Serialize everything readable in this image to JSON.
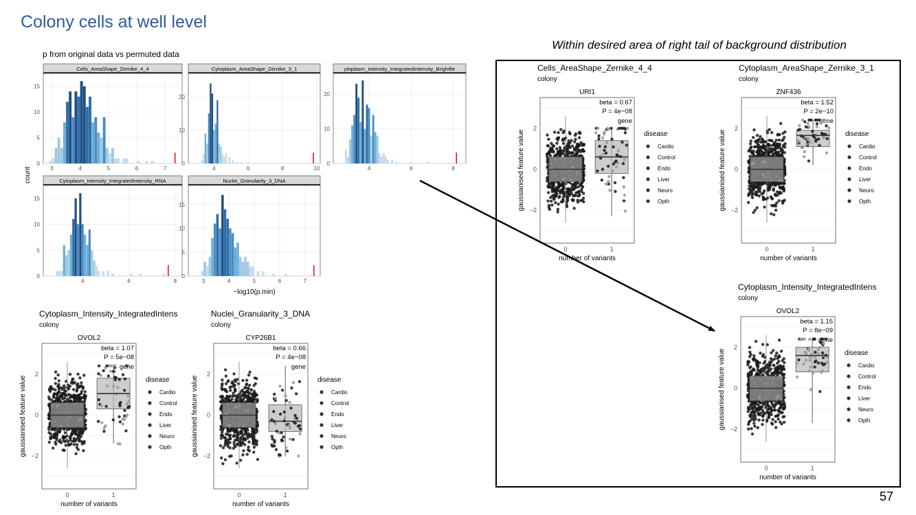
{
  "slide": {
    "title": "Colony cells at well level",
    "section_label": "p from original data vs permuted data",
    "tail_title": "Within desired area of right tail of background distribution",
    "page_number": "57"
  },
  "colors": {
    "title": "#2e5aa0",
    "strip": "#d9d9d9",
    "observed": "#e0151b",
    "box": "#888888"
  },
  "chart_data": [
    {
      "type": "bar",
      "id": "histograms",
      "xlabel": "−log10(p.min)",
      "ylabel": "count",
      "grid": true,
      "panels": [
        {
          "strip": "Cells_AreaShape_Zernike_4_4",
          "strip_display": "Cells_AreaShape_Zernike_4_4",
          "xlim": [
            2.7,
            7.6
          ],
          "xticks": [
            3,
            4,
            5,
            6,
            7
          ],
          "ylim": [
            0,
            17.5
          ],
          "yticks": [
            0,
            5,
            10,
            15
          ],
          "observed": 7.35,
          "bins": [
            [
              2.95,
              0.5
            ],
            [
              3.05,
              1
            ],
            [
              3.15,
              3
            ],
            [
              3.25,
              5
            ],
            [
              3.35,
              3
            ],
            [
              3.45,
              8
            ],
            [
              3.55,
              12
            ],
            [
              3.65,
              14
            ],
            [
              3.75,
              9
            ],
            [
              3.85,
              14
            ],
            [
              3.95,
              13
            ],
            [
              4.05,
              16
            ],
            [
              4.15,
              15
            ],
            [
              4.25,
              11
            ],
            [
              4.35,
              13
            ],
            [
              4.45,
              8
            ],
            [
              4.55,
              9
            ],
            [
              4.65,
              6
            ],
            [
              4.75,
              5
            ],
            [
              4.85,
              9
            ],
            [
              4.95,
              3
            ],
            [
              5.05,
              2
            ],
            [
              5.15,
              3
            ],
            [
              5.25,
              1
            ],
            [
              5.35,
              1
            ],
            [
              5.55,
              1
            ],
            [
              5.65,
              1
            ],
            [
              6.05,
              0.5
            ],
            [
              6.35,
              0.5
            ],
            [
              6.55,
              0.5
            ]
          ]
        },
        {
          "strip": "Cytoplasm_AreaShape_Zernike_3_1",
          "strip_display": "Cytoplasm_AreaShape_Zernike_3_1",
          "xlim": [
            2.5,
            10.2
          ],
          "xticks": [
            4,
            6,
            8,
            10
          ],
          "ylim": [
            0,
            27
          ],
          "yticks": [
            0,
            10,
            20
          ],
          "observed": 9.8,
          "bins": [
            [
              3.3,
              1
            ],
            [
              3.4,
              3
            ],
            [
              3.5,
              9
            ],
            [
              3.6,
              6
            ],
            [
              3.7,
              15
            ],
            [
              3.8,
              24
            ],
            [
              3.9,
              21
            ],
            [
              4.0,
              10
            ],
            [
              4.1,
              12
            ],
            [
              4.2,
              19
            ],
            [
              4.3,
              6
            ],
            [
              4.4,
              5
            ],
            [
              4.5,
              3
            ],
            [
              4.6,
              2
            ],
            [
              4.7,
              3
            ],
            [
              4.9,
              2
            ],
            [
              5.1,
              1
            ],
            [
              5.3,
              0.5
            ],
            [
              5.6,
              0.5
            ],
            [
              6.0,
              0.5
            ]
          ]
        },
        {
          "strip": "Cytoplasm_Intensity_IntegratedIntensity_BrightfieldIllum",
          "strip_display": "ytoplasm_Intensity_IntegratedIntensity_Brightfie",
          "xlim": [
            2.3,
            8.6
          ],
          "xticks": [
            4,
            6,
            8
          ],
          "ylim": [
            0,
            26
          ],
          "yticks": [
            0,
            10,
            20
          ],
          "observed": 8.15,
          "bins": [
            [
              2.9,
              4
            ],
            [
              3.0,
              2
            ],
            [
              3.1,
              7
            ],
            [
              3.2,
              11
            ],
            [
              3.3,
              14
            ],
            [
              3.4,
              23
            ],
            [
              3.5,
              19
            ],
            [
              3.6,
              12
            ],
            [
              3.7,
              24
            ],
            [
              3.8,
              10
            ],
            [
              3.9,
              17
            ],
            [
              4.0,
              16
            ],
            [
              4.1,
              8
            ],
            [
              4.2,
              14
            ],
            [
              4.3,
              9
            ],
            [
              4.4,
              8
            ],
            [
              4.5,
              3
            ],
            [
              4.6,
              2
            ],
            [
              4.7,
              3
            ],
            [
              4.8,
              2
            ],
            [
              4.9,
              1
            ],
            [
              5.1,
              1
            ],
            [
              5.3,
              0.5
            ],
            [
              6.0,
              0.5
            ],
            [
              6.8,
              0.5
            ]
          ]
        },
        {
          "strip": "Cytoplasm_Intensity_IntegratedIntensity_RNA",
          "strip_display": "Cytoplasm_Intensity_IntegratedIntensity_RNA",
          "xlim": [
            2.3,
            8.3
          ],
          "xticks": [
            4,
            6,
            8
          ],
          "ylim": [
            0,
            17.5
          ],
          "yticks": [
            0,
            5,
            10,
            15
          ],
          "observed": 7.7,
          "bins": [
            [
              2.9,
              1
            ],
            [
              3.0,
              1
            ],
            [
              3.1,
              1
            ],
            [
              3.2,
              6
            ],
            [
              3.3,
              4
            ],
            [
              3.4,
              5
            ],
            [
              3.5,
              8
            ],
            [
              3.6,
              11
            ],
            [
              3.7,
              15
            ],
            [
              3.8,
              10
            ],
            [
              3.9,
              16
            ],
            [
              4.0,
              10
            ],
            [
              4.1,
              8
            ],
            [
              4.2,
              6
            ],
            [
              4.3,
              9
            ],
            [
              4.4,
              5
            ],
            [
              4.5,
              3
            ],
            [
              4.6,
              2
            ],
            [
              4.7,
              1
            ],
            [
              4.9,
              1
            ],
            [
              5.1,
              1
            ],
            [
              5.3,
              0.5
            ],
            [
              6.1,
              0.5
            ],
            [
              6.5,
              0.5
            ],
            [
              7.5,
              0.5
            ]
          ]
        },
        {
          "strip": "Nuclei_Granularity_3_DNA",
          "strip_display": "Nuclei_Granularity_3_DNA",
          "xlim": [
            2.4,
            7.6
          ],
          "xticks": [
            3,
            4,
            5,
            6,
            7
          ],
          "ylim": [
            0,
            19
          ],
          "yticks": [
            0,
            5,
            10,
            15
          ],
          "observed": 7.35,
          "bins": [
            [
              2.95,
              1
            ],
            [
              3.05,
              3
            ],
            [
              3.15,
              2
            ],
            [
              3.25,
              4
            ],
            [
              3.35,
              8
            ],
            [
              3.45,
              11
            ],
            [
              3.55,
              13
            ],
            [
              3.65,
              10
            ],
            [
              3.75,
              17
            ],
            [
              3.85,
              14
            ],
            [
              3.95,
              12
            ],
            [
              4.05,
              10
            ],
            [
              4.15,
              9
            ],
            [
              4.25,
              6
            ],
            [
              4.35,
              7
            ],
            [
              4.45,
              4
            ],
            [
              4.55,
              3
            ],
            [
              4.65,
              4
            ],
            [
              4.75,
              3
            ],
            [
              4.85,
              2
            ],
            [
              4.95,
              2
            ],
            [
              5.15,
              1
            ],
            [
              5.35,
              1
            ],
            [
              5.75,
              0.5
            ],
            [
              6.25,
              0.5
            ]
          ]
        }
      ]
    },
    {
      "type": "scatter",
      "id": "box-plots",
      "xlabel": "number of variants",
      "ylabel": "gaussianised feature value",
      "legend_title": "disease",
      "legend_items": [
        "Cardio",
        "Control",
        "Endo",
        "Liver",
        "Neuro",
        "Opth"
      ],
      "legend_placement": "right",
      "facet_label": "gene",
      "xticks": [
        "0",
        "1"
      ],
      "yticks": [
        -2,
        0,
        2
      ],
      "plots": [
        {
          "feature": "Cytoplasm_Intensity_IntegratedIntens",
          "cell_type": "colony",
          "gene": "OVOL2",
          "beta_label": "beta = 1.07",
          "p_label": "P = 5e−08",
          "group0": {
            "q1": -0.6,
            "median": 0.0,
            "q3": 0.6,
            "whisker_low": -2.6,
            "whisker_high": 2.6
          },
          "group1": {
            "q1": 0.3,
            "median": 1.05,
            "q3": 1.8,
            "whisker_low": -1.4,
            "whisker_high": 2.4
          }
        },
        {
          "feature": "Nuclei_Granularity_3_DNA",
          "cell_type": "colony",
          "gene": "CYP26B1",
          "beta_label": "beta = 0.66",
          "p_label": "P = 4e−08",
          "group0": {
            "q1": -0.6,
            "median": 0.0,
            "q3": 0.6,
            "whisker_low": -2.6,
            "whisker_high": 2.6
          },
          "group1": {
            "q1": -0.8,
            "median": -0.3,
            "q3": 0.5,
            "whisker_low": -2.0,
            "whisker_high": 2.4
          }
        },
        {
          "feature": "Cells_AreaShape_Zernike_4_4",
          "cell_type": "colony",
          "gene": "URI1",
          "beta_label": "beta = 0.67",
          "P_dummy": "",
          "p_label": "P = 4e−08",
          "group0": {
            "q1": -0.6,
            "median": 0.0,
            "q3": 0.6,
            "whisker_low": -2.6,
            "whisker_high": 2.6
          },
          "group1": {
            "q1": -0.2,
            "median": 0.6,
            "q3": 1.4,
            "whisker_low": -2.3,
            "whisker_high": 2.0
          }
        },
        {
          "feature": "Cytoplasm_AreaShape_Zernike_3_1",
          "cell_type": "colony",
          "gene": "ZNF436",
          "beta_label": "beta = 1.52",
          "p_label": "P = 2e−10",
          "group0": {
            "q1": -0.6,
            "median": 0.0,
            "q3": 0.6,
            "whisker_low": -2.6,
            "whisker_high": 2.6
          },
          "group1": {
            "q1": 1.1,
            "median": 1.65,
            "q3": 1.9,
            "whisker_low": 0.2,
            "whisker_high": 2.4
          }
        },
        {
          "feature": "Cytoplasm_Intensity_IntegratedIntens",
          "cell_type": "colony",
          "gene": "OVOL2",
          "beta_label": "beta = 1.15",
          "p_label": "P = 8e−09",
          "group0": {
            "q1": -0.6,
            "median": 0.0,
            "q3": 0.6,
            "whisker_low": -2.6,
            "whisker_high": 2.6
          },
          "group1": {
            "q1": 0.8,
            "median": 1.6,
            "q3": 2.0,
            "whisker_low": -1.7,
            "whisker_high": 2.4
          }
        }
      ]
    }
  ]
}
